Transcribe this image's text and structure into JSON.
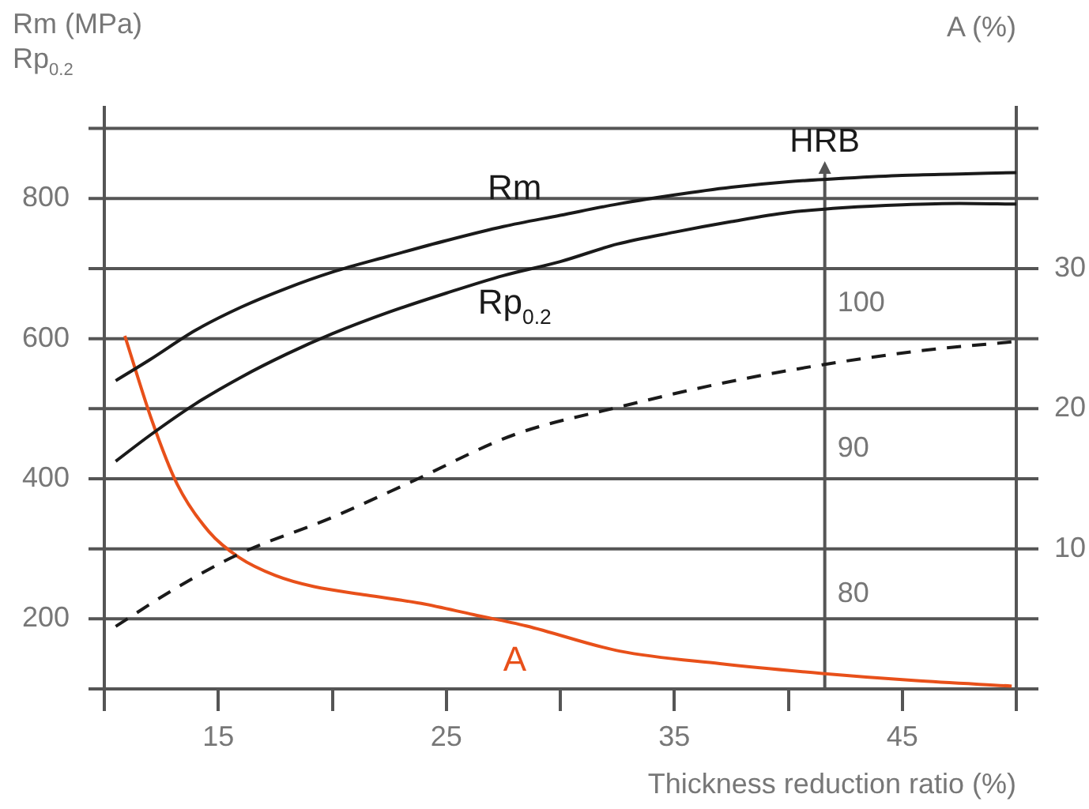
{
  "chart_data": {
    "type": "line",
    "xlabel": "Thickness reduction ratio (%)",
    "ylabel": "Rm (MPa)\nRp$_{0.2}$",
    "y2label": "A (%)",
    "y3label": "HRB",
    "xlim": [
      10,
      50
    ],
    "xticks": [
      {
        "value": 10,
        "label": null
      },
      15,
      {
        "value": 20,
        "label": null
      },
      25,
      {
        "value": 30,
        "label": null
      },
      35,
      {
        "value": 40,
        "label": null
      },
      45,
      {
        "value": 50,
        "label": null
      }
    ],
    "ylim": [
      100,
      930
    ],
    "yticks": [
      {
        "value": 100,
        "label": null
      },
      200,
      {
        "value": 300,
        "label": null
      },
      400,
      {
        "value": 500,
        "label": null
      },
      600,
      {
        "value": 700,
        "label": null
      },
      800,
      {
        "value": 900,
        "label": null
      }
    ],
    "y2lim": [
      0,
      41.5
    ],
    "y2ticks": [
      10,
      20,
      30
    ],
    "y3lim": [
      73.5,
      113.5
    ],
    "y3ticks": [
      80,
      90,
      100
    ],
    "grid": "y",
    "legend": false,
    "marker": "none",
    "series": [
      {
        "name": "Rm",
        "color": "#1a1a1a",
        "x": [
          10.5,
          12,
          14,
          16,
          18,
          20,
          22.5,
          25,
          27.5,
          30,
          32.5,
          35,
          37.5,
          40,
          42.5,
          45,
          47.5,
          50
        ],
        "values": [
          540,
          570,
          612,
          645,
          672,
          695,
          718,
          740,
          760,
          776,
          792,
          805,
          816,
          824,
          829,
          833,
          835,
          837
        ]
      },
      {
        "name": "Rp$_{0.2}$",
        "color": "#1a1a1a",
        "x": [
          10.5,
          12,
          14,
          16,
          18,
          20,
          22.5,
          25,
          27.5,
          30,
          32.5,
          35,
          37.5,
          40,
          42.5,
          45,
          47.5,
          50
        ],
        "values": [
          425,
          462,
          507,
          545,
          578,
          607,
          638,
          665,
          690,
          710,
          735,
          752,
          767,
          780,
          787,
          791,
          793,
          792
        ]
      },
      {
        "color": "#1a1a1a",
        "axis": "y3",
        "line_style": "dashed",
        "x": [
          10.5,
          13,
          15.8,
          20,
          23.4,
          28,
          32.6,
          37,
          41.5,
          46,
          50
        ],
        "values": [
          77.8,
          80.3,
          82.7,
          85.3,
          87.7,
          91.0,
          92.9,
          94.5,
          95.8,
          96.8,
          97.4
        ]
      },
      {
        "name": "A",
        "color": "#e8501a",
        "axis": "y2",
        "x": [
          10.9,
          12.1,
          13.2,
          14.6,
          15.9,
          17.5,
          19.2,
          21.5,
          23.9,
          26.2,
          28.5,
          32.6,
          37,
          41.5,
          45.5,
          49.8
        ],
        "values": [
          25.2,
          19.1,
          14.6,
          11.2,
          9.4,
          8.1,
          7.3,
          6.7,
          6.1,
          5.3,
          4.5,
          2.7,
          1.8,
          1.1,
          0.6,
          0.2
        ]
      }
    ]
  }
}
